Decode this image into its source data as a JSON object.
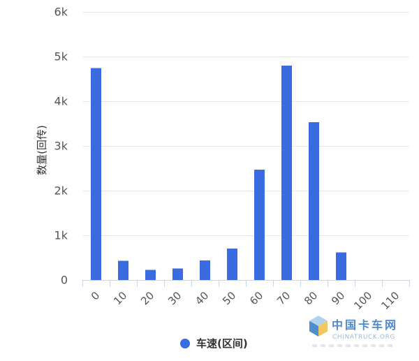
{
  "chart_data": {
    "type": "bar",
    "categories": [
      "0",
      "10",
      "20",
      "30",
      "40",
      "50",
      "60",
      "70",
      "80",
      "90",
      "100",
      "110"
    ],
    "series": [
      {
        "name": "车速(区间)",
        "values": [
          4740,
          430,
          230,
          260,
          440,
          700,
          2470,
          4800,
          3530,
          620,
          0,
          0
        ],
        "color": "#3b6be0"
      }
    ],
    "ylabel": "数量(回传)",
    "ylim": [
      0,
      6000
    ],
    "yticks": [
      0,
      1000,
      2000,
      3000,
      4000,
      5000,
      6000
    ],
    "ytick_labels": [
      "0",
      "1k",
      "2k",
      "3k",
      "4k",
      "5k",
      "6k"
    ],
    "grid": true,
    "legend": "bottom-center"
  },
  "watermark": {
    "cn": "中国卡车网",
    "en": "CHINATRUCK.ORG",
    "icon": "cube-logo-icon"
  }
}
